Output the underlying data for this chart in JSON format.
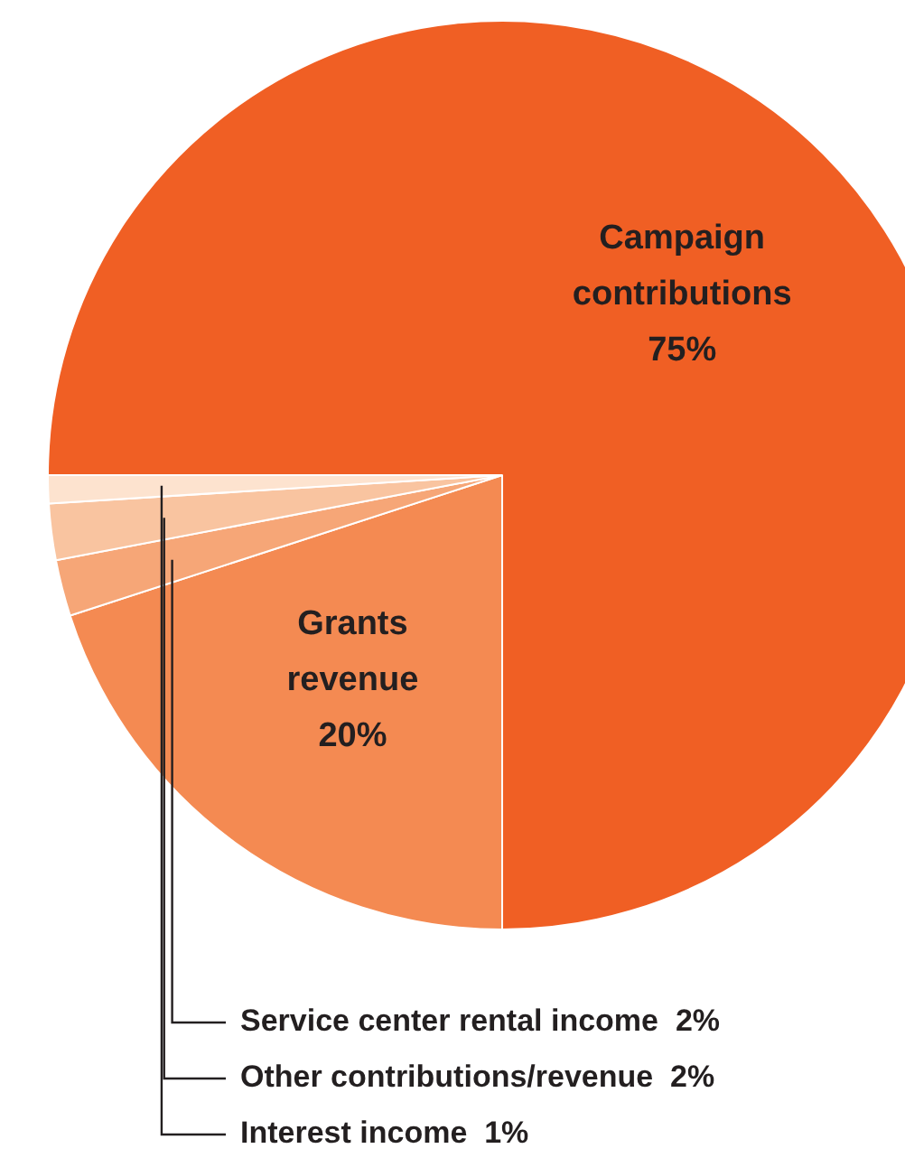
{
  "chart_data": {
    "type": "pie",
    "categories": [
      "Campaign contributions",
      "Grants revenue",
      "Service center rental income",
      "Other contributions/revenue",
      "Interest income"
    ],
    "values": [
      75,
      20,
      2,
      2,
      1
    ],
    "value_labels": [
      "75%",
      "20%",
      "2%",
      "2%",
      "1%"
    ],
    "colors": [
      "#f05f24",
      "#f48a52",
      "#f6a677",
      "#f9c4a0",
      "#fde3cf"
    ],
    "legend": false
  }
}
